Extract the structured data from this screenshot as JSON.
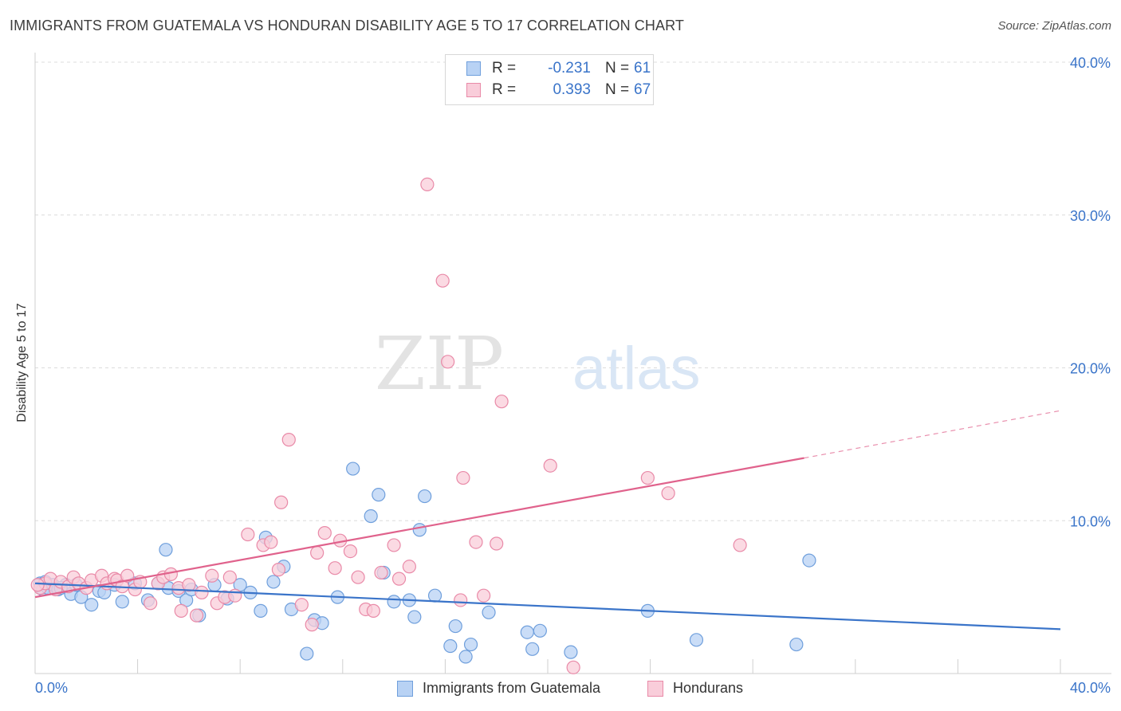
{
  "header": {
    "title": "IMMIGRANTS FROM GUATEMALA VS HONDURAN DISABILITY AGE 5 TO 17 CORRELATION CHART",
    "source": "Source: ZipAtlas.com"
  },
  "watermark": {
    "zip": "ZIP",
    "atlas": "atlas"
  },
  "legend": {
    "rows": [
      {
        "r_label": "R =",
        "r_value": "-0.231",
        "n_label": "N =",
        "n_value": "61",
        "color": "#a8c8f0",
        "border": "#6f9fdc"
      },
      {
        "r_label": "R =",
        "r_value": "0.393",
        "n_label": "N =",
        "n_value": "67",
        "color": "#f7c3d3",
        "border": "#e98aa8"
      }
    ]
  },
  "bottom_legend": [
    {
      "label": "Immigrants from Guatemala",
      "color": "#b8d2f4",
      "border": "#6f9fdc"
    },
    {
      "label": "Hondurans",
      "color": "#f9cdda",
      "border": "#e98aa8"
    }
  ],
  "chart_data": {
    "type": "scatter",
    "title": "IMMIGRANTS FROM GUATEMALA VS HONDURAN DISABILITY AGE 5 TO 17 CORRELATION CHART",
    "xlabel": "",
    "ylabel": "Disability Age 5 to 17",
    "xlim": [
      0,
      40
    ],
    "ylim": [
      0,
      40
    ],
    "x_tick_labels": [
      "0.0%",
      "40.0%"
    ],
    "y_ticks": [
      {
        "value": 10,
        "label": "10.0%"
      },
      {
        "value": 20,
        "label": "20.0%"
      },
      {
        "value": 30,
        "label": "30.0%"
      },
      {
        "value": 40,
        "label": "40.0%"
      }
    ],
    "grid": true,
    "series": [
      {
        "name": "Immigrants from Guatemala",
        "color": "#6f9fdc",
        "fill": "#b8d2f4",
        "trend": {
          "x": [
            0,
            40
          ],
          "y": [
            5.9,
            2.9
          ],
          "color": "#3a74c9"
        },
        "points": [
          [
            0.2,
            5.9
          ],
          [
            0.3,
            5.5
          ],
          [
            0.4,
            6.0
          ],
          [
            0.5,
            5.6
          ],
          [
            0.7,
            5.8
          ],
          [
            0.9,
            5.5
          ],
          [
            1.2,
            5.8
          ],
          [
            1.4,
            5.2
          ],
          [
            1.6,
            5.8
          ],
          [
            1.8,
            5.0
          ],
          [
            2.2,
            4.5
          ],
          [
            2.5,
            5.4
          ],
          [
            2.7,
            5.3
          ],
          [
            3.1,
            5.8
          ],
          [
            3.4,
            4.7
          ],
          [
            3.9,
            5.9
          ],
          [
            4.4,
            4.8
          ],
          [
            4.8,
            5.9
          ],
          [
            5.1,
            8.1
          ],
          [
            5.2,
            5.6
          ],
          [
            5.6,
            5.4
          ],
          [
            5.9,
            4.8
          ],
          [
            6.1,
            5.5
          ],
          [
            6.4,
            3.8
          ],
          [
            7.0,
            5.8
          ],
          [
            7.5,
            4.9
          ],
          [
            8.0,
            5.8
          ],
          [
            8.4,
            5.3
          ],
          [
            8.8,
            4.1
          ],
          [
            9.0,
            8.9
          ],
          [
            9.3,
            6.0
          ],
          [
            9.7,
            7.0
          ],
          [
            10.0,
            4.2
          ],
          [
            10.6,
            1.3
          ],
          [
            10.9,
            3.5
          ],
          [
            11.2,
            3.3
          ],
          [
            11.8,
            5.0
          ],
          [
            12.4,
            13.4
          ],
          [
            13.1,
            10.3
          ],
          [
            13.4,
            11.7
          ],
          [
            13.6,
            6.6
          ],
          [
            14.0,
            4.7
          ],
          [
            14.6,
            4.8
          ],
          [
            14.8,
            3.7
          ],
          [
            15.0,
            9.4
          ],
          [
            15.2,
            11.6
          ],
          [
            15.6,
            5.1
          ],
          [
            16.2,
            1.8
          ],
          [
            16.4,
            3.1
          ],
          [
            16.8,
            1.1
          ],
          [
            17.0,
            1.9
          ],
          [
            17.7,
            4.0
          ],
          [
            19.2,
            2.7
          ],
          [
            19.4,
            1.6
          ],
          [
            19.7,
            2.8
          ],
          [
            20.9,
            1.4
          ],
          [
            23.9,
            4.1
          ],
          [
            25.8,
            2.2
          ],
          [
            29.7,
            1.9
          ],
          [
            30.2,
            7.4
          ],
          [
            1.0,
            5.6
          ]
        ]
      },
      {
        "name": "Hondurans",
        "color": "#e98aa8",
        "fill": "#f9cdda",
        "trend": {
          "x": [
            0,
            30.0
          ],
          "y": [
            5.0,
            14.1
          ],
          "color": "#e0628c",
          "dashed_to": [
            40,
            17.2
          ]
        },
        "points": [
          [
            0.2,
            5.6
          ],
          [
            0.4,
            5.9
          ],
          [
            0.6,
            6.2
          ],
          [
            0.8,
            5.5
          ],
          [
            1.0,
            6.0
          ],
          [
            1.3,
            5.7
          ],
          [
            1.5,
            6.3
          ],
          [
            1.7,
            5.9
          ],
          [
            2.0,
            5.6
          ],
          [
            2.2,
            6.1
          ],
          [
            2.6,
            6.4
          ],
          [
            2.8,
            5.9
          ],
          [
            3.1,
            6.2
          ],
          [
            3.2,
            6.1
          ],
          [
            3.4,
            5.7
          ],
          [
            3.6,
            6.4
          ],
          [
            3.9,
            5.5
          ],
          [
            4.1,
            6.0
          ],
          [
            4.5,
            4.6
          ],
          [
            4.8,
            5.9
          ],
          [
            5.0,
            6.3
          ],
          [
            5.3,
            6.5
          ],
          [
            5.6,
            5.6
          ],
          [
            5.7,
            4.1
          ],
          [
            6.0,
            5.8
          ],
          [
            6.3,
            3.8
          ],
          [
            6.5,
            5.3
          ],
          [
            6.9,
            6.4
          ],
          [
            7.1,
            4.6
          ],
          [
            7.4,
            5.0
          ],
          [
            7.6,
            6.3
          ],
          [
            7.8,
            5.1
          ],
          [
            8.3,
            9.1
          ],
          [
            8.9,
            8.4
          ],
          [
            9.2,
            8.6
          ],
          [
            9.5,
            6.8
          ],
          [
            9.6,
            11.2
          ],
          [
            9.9,
            15.3
          ],
          [
            10.4,
            4.5
          ],
          [
            10.8,
            3.2
          ],
          [
            11.0,
            7.9
          ],
          [
            11.3,
            9.2
          ],
          [
            11.7,
            6.9
          ],
          [
            11.9,
            8.7
          ],
          [
            12.3,
            8.0
          ],
          [
            12.6,
            6.3
          ],
          [
            12.9,
            4.2
          ],
          [
            13.2,
            4.1
          ],
          [
            13.5,
            6.6
          ],
          [
            14.0,
            8.4
          ],
          [
            14.2,
            6.2
          ],
          [
            14.6,
            7.0
          ],
          [
            15.3,
            32.0
          ],
          [
            15.9,
            25.7
          ],
          [
            16.1,
            20.4
          ],
          [
            16.6,
            4.8
          ],
          [
            16.7,
            12.8
          ],
          [
            17.2,
            8.6
          ],
          [
            17.5,
            5.1
          ],
          [
            18.0,
            8.5
          ],
          [
            18.2,
            17.8
          ],
          [
            20.1,
            13.6
          ],
          [
            21.0,
            0.4
          ],
          [
            23.9,
            12.8
          ],
          [
            24.7,
            11.8
          ],
          [
            27.5,
            8.4
          ],
          [
            0.1,
            5.8
          ]
        ]
      }
    ]
  }
}
